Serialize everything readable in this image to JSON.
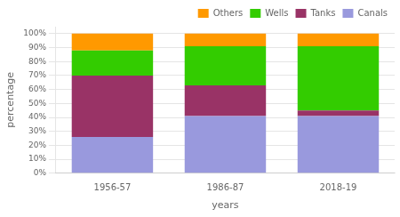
{
  "chart_data": {
    "type": "bar",
    "categories": [
      "1956-57",
      "1986-87",
      "2018-19"
    ],
    "series": [
      {
        "name": "Canals",
        "color": "#9999dd",
        "values": [
          26,
          41,
          41
        ]
      },
      {
        "name": "Tanks",
        "color": "#993366",
        "values": [
          44,
          22,
          4
        ]
      },
      {
        "name": "Wells",
        "color": "#33cc00",
        "values": [
          18,
          28,
          46
        ]
      },
      {
        "name": "Others",
        "color": "#ff9900",
        "values": [
          12,
          9,
          9
        ]
      }
    ],
    "stacked": true,
    "xlabel": "years",
    "ylabel": "percentage",
    "ylim": [
      0,
      105
    ],
    "yticks": [
      {
        "value": 0,
        "label": "0%"
      },
      {
        "value": 10,
        "label": "10%"
      },
      {
        "value": 20,
        "label": "20%"
      },
      {
        "value": 30,
        "label": "30%"
      },
      {
        "value": 40,
        "label": "40%"
      },
      {
        "value": 50,
        "label": "50%"
      },
      {
        "value": 60,
        "label": "60%"
      },
      {
        "value": 70,
        "label": "70%"
      },
      {
        "value": 80,
        "label": "80%"
      },
      {
        "value": 90,
        "label": "90%"
      },
      {
        "value": 100,
        "label": "100%"
      }
    ],
    "grid": true,
    "legend": "upper right"
  }
}
